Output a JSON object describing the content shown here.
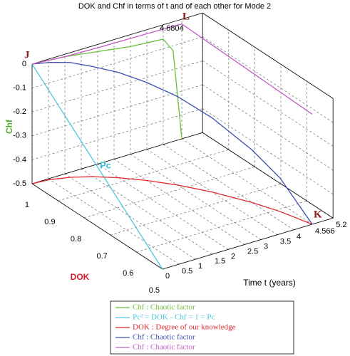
{
  "chart_data": {
    "type": "line3d",
    "title": "DOK and Chf in terms of t and of each other for Mode 2",
    "xlabel": "Time t (years)",
    "ylabel": "DOK",
    "zlabel": "Chf",
    "xlim": [
      0,
      5.2
    ],
    "ylim": [
      0.5,
      1
    ],
    "zlim": [
      -0.5,
      0
    ],
    "xticks": [
      0,
      0.5,
      1,
      1.5,
      2,
      2.5,
      3,
      3.5,
      4,
      4.566,
      5.2
    ],
    "yticks": [
      0.5,
      0.6,
      0.7,
      0.8,
      0.9,
      1
    ],
    "zticks": [
      -0.5,
      -0.4,
      -0.3,
      -0.2,
      -0.1,
      0
    ],
    "grid": true,
    "series": [
      {
        "name": "Chf : Chaotic factor",
        "color": "#6abf3a",
        "x": [
          0,
          0.5,
          1,
          1.5,
          2,
          2.5,
          3,
          3.5,
          4,
          4.3,
          4.566
        ],
        "y": [
          1,
          1,
          1,
          1,
          1,
          1,
          1,
          1,
          1,
          1,
          1
        ],
        "z": [
          0,
          -0.005,
          -0.01,
          -0.02,
          -0.03,
          -0.04,
          -0.05,
          -0.055,
          -0.06,
          -0.12,
          -0.5
        ]
      },
      {
        "name": "Pc² = DOK - Chf = 1 = Pc",
        "color": "#4cc8e0",
        "x": [
          0,
          0,
          0
        ],
        "y": [
          1,
          0.75,
          0.5
        ],
        "z": [
          0,
          -0.25,
          -0.5
        ]
      },
      {
        "name": "DOK : Degree of our knowledge",
        "color": "#e0282e",
        "x": [
          0,
          0.5,
          1,
          1.5,
          2,
          2.5,
          3,
          3.5,
          4,
          4.3,
          4.566
        ],
        "y": [
          1,
          0.995,
          0.98,
          0.955,
          0.92,
          0.875,
          0.82,
          0.75,
          0.66,
          0.59,
          0.5
        ],
        "z": [
          -0.5,
          -0.5,
          -0.5,
          -0.5,
          -0.5,
          -0.5,
          -0.5,
          -0.5,
          -0.5,
          -0.5,
          -0.5
        ]
      },
      {
        "name": "Chf : Chaotic factor",
        "color": "#3b4fb0",
        "x": [
          0,
          0.5,
          1,
          1.5,
          2,
          2.5,
          3,
          3.5,
          4,
          4.3,
          4.566
        ],
        "y": [
          1,
          0.995,
          0.98,
          0.955,
          0.92,
          0.875,
          0.82,
          0.75,
          0.66,
          0.59,
          0.5
        ],
        "z": [
          0,
          -0.01,
          -0.02,
          -0.04,
          -0.06,
          -0.09,
          -0.13,
          -0.19,
          -0.28,
          -0.36,
          -0.5
        ]
      },
      {
        "name": "Chf : Chaotic factor",
        "color": "#c45bc4",
        "x": [
          0,
          0.5,
          1,
          1.5,
          2,
          2.5,
          3,
          3.5,
          4,
          4.3,
          4.566,
          4.566,
          4.566
        ],
        "y": [
          1,
          1,
          1,
          1,
          1,
          1,
          1,
          1,
          1,
          1,
          1,
          0.75,
          0.5
        ],
        "z": [
          0,
          -0.005,
          -0.01,
          -0.012,
          -0.014,
          -0.015,
          -0.016,
          -0.017,
          -0.018,
          -0.019,
          -0.02,
          -0.03,
          -0.04
        ]
      }
    ],
    "annotations": [
      "J",
      "L",
      "K",
      "Pc",
      "4.6804"
    ]
  }
}
